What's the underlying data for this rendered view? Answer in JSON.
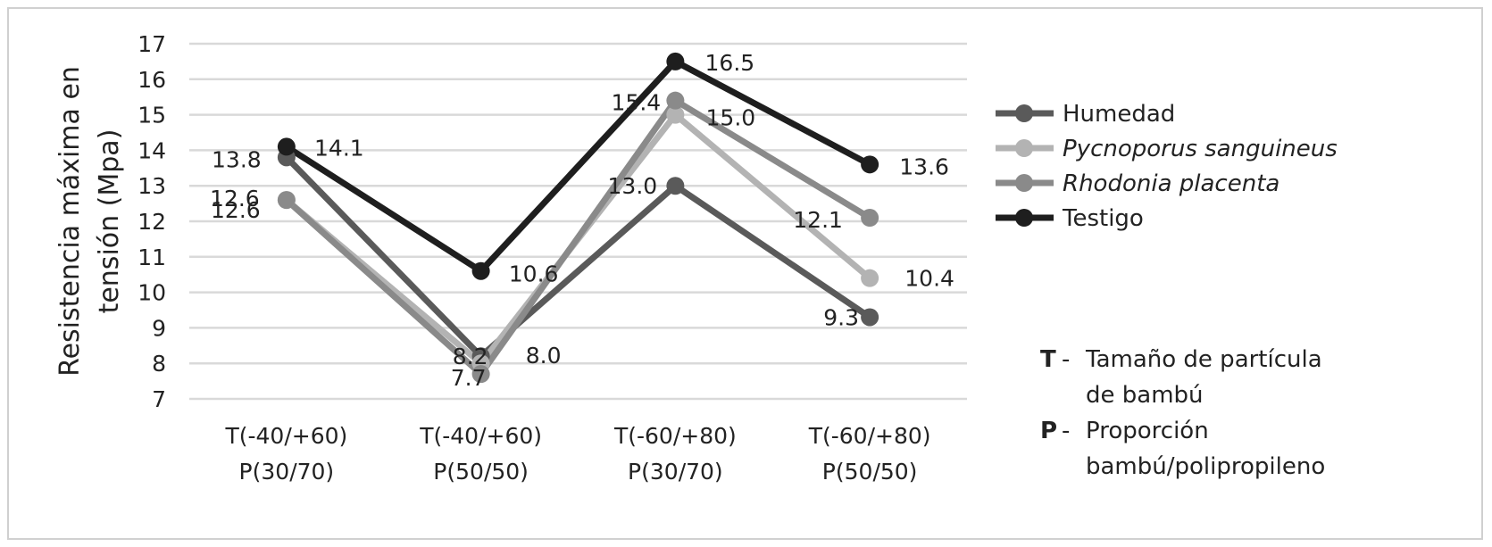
{
  "chart_data": {
    "type": "line",
    "title": "",
    "xlabel": "",
    "ylabel": "Resistencia máxima en tensión (Mpa)",
    "ylabel_lines": [
      "Resistencia máxima en",
      "tensión (Mpa)"
    ],
    "ylim": [
      7,
      17
    ],
    "yticks": [
      "7",
      "8",
      "9",
      "10",
      "11",
      "12",
      "13",
      "14",
      "15",
      "16",
      "17"
    ],
    "grid": true,
    "legend_position": "right",
    "categories": [
      [
        "T(-40/+60)",
        "P(30/70)"
      ],
      [
        "T(-40/+60)",
        "P(50/50)"
      ],
      [
        "T(-60/+80)",
        "P(30/70)"
      ],
      [
        "T(-60/+80)",
        "P(50/50)"
      ]
    ],
    "series": [
      {
        "name": "Humedad",
        "italic": false,
        "color": "#5a5a5a",
        "values": [
          13.8,
          8.2,
          13.0,
          9.3
        ],
        "labels": [
          "13.8",
          "8.2",
          "13.0",
          "9.3"
        ]
      },
      {
        "name": "Pycnoporus sanguineus",
        "italic": true,
        "color": "#b3b3b3",
        "values": [
          12.6,
          8.0,
          15.0,
          10.4
        ],
        "labels": [
          "12.6",
          "8.0",
          "15.0",
          "10.4"
        ]
      },
      {
        "name": "Rhodonia placenta",
        "italic": true,
        "color": "#8a8a8a",
        "values": [
          12.6,
          7.7,
          15.4,
          12.1
        ],
        "labels": [
          "12.6",
          "7.7",
          "15.4",
          "12.1"
        ]
      },
      {
        "name": "Testigo",
        "italic": false,
        "color": "#1e1e1e",
        "values": [
          14.1,
          10.6,
          16.5,
          13.6
        ],
        "labels": [
          "14.1",
          "10.6",
          "16.5",
          "13.6"
        ]
      }
    ]
  },
  "notes": [
    {
      "key": "T",
      "sep": "-",
      "lines": [
        "Tamaño de partícula",
        "de bambú"
      ]
    },
    {
      "key": "P",
      "sep": "-",
      "lines": [
        "Proporción",
        "bambú/polipropileno"
      ]
    }
  ]
}
